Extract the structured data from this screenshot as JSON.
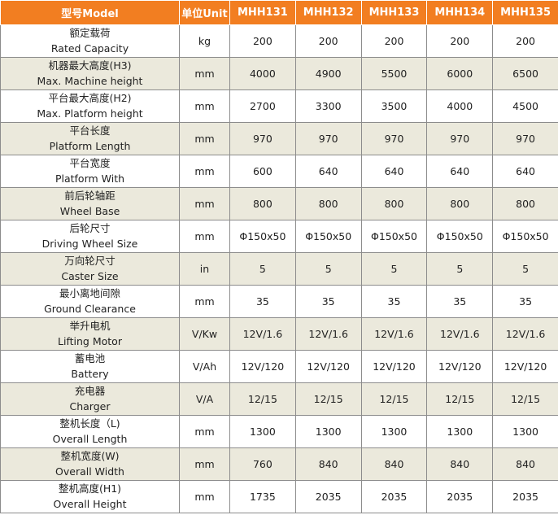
{
  "header": {
    "model_label": "型号Model",
    "unit_label": "单位Unit",
    "models": [
      "MHH131",
      "MHH132",
      "MHH133",
      "MHH134",
      "MHH135"
    ]
  },
  "rows": [
    {
      "zh": "额定载荷",
      "en": "Rated Capacity",
      "unit": "kg",
      "values": [
        "200",
        "200",
        "200",
        "200",
        "200"
      ]
    },
    {
      "zh": "机器最大高度(H3)",
      "en": "Max. Machine height",
      "unit": "mm",
      "values": [
        "4000",
        "4900",
        "5500",
        "6000",
        "6500"
      ]
    },
    {
      "zh": "平台最大高度(H2)",
      "en": "Max. Platform height",
      "unit": "mm",
      "values": [
        "2700",
        "3300",
        "3500",
        "4000",
        "4500"
      ]
    },
    {
      "zh": "平台长度",
      "en": "Platform Length",
      "unit": "mm",
      "values": [
        "970",
        "970",
        "970",
        "970",
        "970"
      ]
    },
    {
      "zh": "平台宽度",
      "en": "Platform With",
      "unit": "mm",
      "values": [
        "600",
        "640",
        "640",
        "640",
        "640"
      ]
    },
    {
      "zh": "前后轮轴距",
      "en": "Wheel Base",
      "unit": "mm",
      "values": [
        "800",
        "800",
        "800",
        "800",
        "800"
      ]
    },
    {
      "zh": "后轮尺寸",
      "en": "Driving Wheel Size",
      "unit": "mm",
      "values": [
        "Φ150x50",
        "Φ150x50",
        "Φ150x50",
        "Φ150x50",
        "Φ150x50"
      ]
    },
    {
      "zh": "万向轮尺寸",
      "en": "Caster Size",
      "unit": "in",
      "values": [
        "5",
        "5",
        "5",
        "5",
        "5"
      ]
    },
    {
      "zh": "最小离地间隙",
      "en": "Ground Clearance",
      "unit": "mm",
      "values": [
        "35",
        "35",
        "35",
        "35",
        "35"
      ]
    },
    {
      "zh": "举升电机",
      "en": "Lifting Motor",
      "unit": "V/Kw",
      "values": [
        "12V/1.6",
        "12V/1.6",
        "12V/1.6",
        "12V/1.6",
        "12V/1.6"
      ]
    },
    {
      "zh": "蓄电池",
      "en": "Battery",
      "unit": "V/Ah",
      "values": [
        "12V/120",
        "12V/120",
        "12V/120",
        "12V/120",
        "12V/120"
      ]
    },
    {
      "zh": "充电器",
      "en": "Charger",
      "unit": "V/A",
      "values": [
        "12/15",
        "12/15",
        "12/15",
        "12/15",
        "12/15"
      ]
    },
    {
      "zh": "整机长度（L)",
      "en": "Overall Length",
      "unit": "mm",
      "values": [
        "1300",
        "1300",
        "1300",
        "1300",
        "1300"
      ]
    },
    {
      "zh": "整机宽度(W)",
      "en": "Overall Width",
      "unit": "mm",
      "values": [
        "760",
        "840",
        "840",
        "840",
        "840"
      ]
    },
    {
      "zh": "整机高度(H1)",
      "en": "Overall Height",
      "unit": "mm",
      "values": [
        "1735",
        "2035",
        "2035",
        "2035",
        "2035"
      ]
    }
  ]
}
